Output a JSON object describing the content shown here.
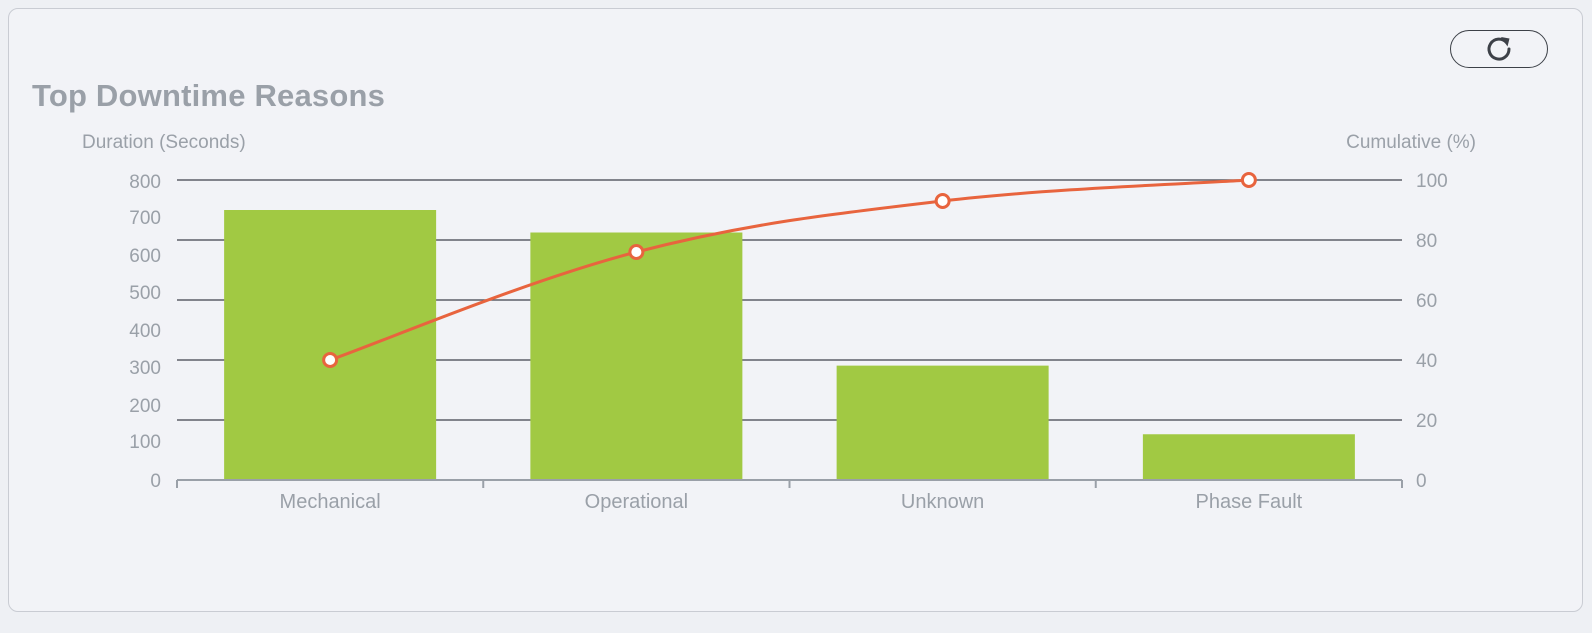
{
  "header": {
    "title": "Top Downtime Reasons",
    "refresh_icon": "refresh-icon"
  },
  "colors": {
    "bar": "#a1c943",
    "line": "#e8643e",
    "grid": "#5c6068",
    "text": "#9aa0a8"
  },
  "chart_data": {
    "type": "bar",
    "title": "Top Downtime Reasons",
    "categories": [
      "Mechanical",
      "Operational",
      "Unknown",
      "Phase Fault"
    ],
    "ylabel": "Duration (Seconds)",
    "y2label": "Cumulative (%)",
    "ylim": [
      0,
      800
    ],
    "y2lim": [
      0,
      100
    ],
    "yticks": [
      "0",
      "100",
      "200",
      "300",
      "400",
      "500",
      "600",
      "700",
      "800"
    ],
    "y2ticks": [
      "0",
      "20",
      "40",
      "60",
      "80",
      "100"
    ],
    "grid": true,
    "series": [
      {
        "type": "bar",
        "axis": "left",
        "values": [
          720,
          660,
          305,
          122
        ]
      },
      {
        "type": "line",
        "axis": "right",
        "values": [
          40,
          76,
          93,
          100
        ]
      }
    ]
  }
}
